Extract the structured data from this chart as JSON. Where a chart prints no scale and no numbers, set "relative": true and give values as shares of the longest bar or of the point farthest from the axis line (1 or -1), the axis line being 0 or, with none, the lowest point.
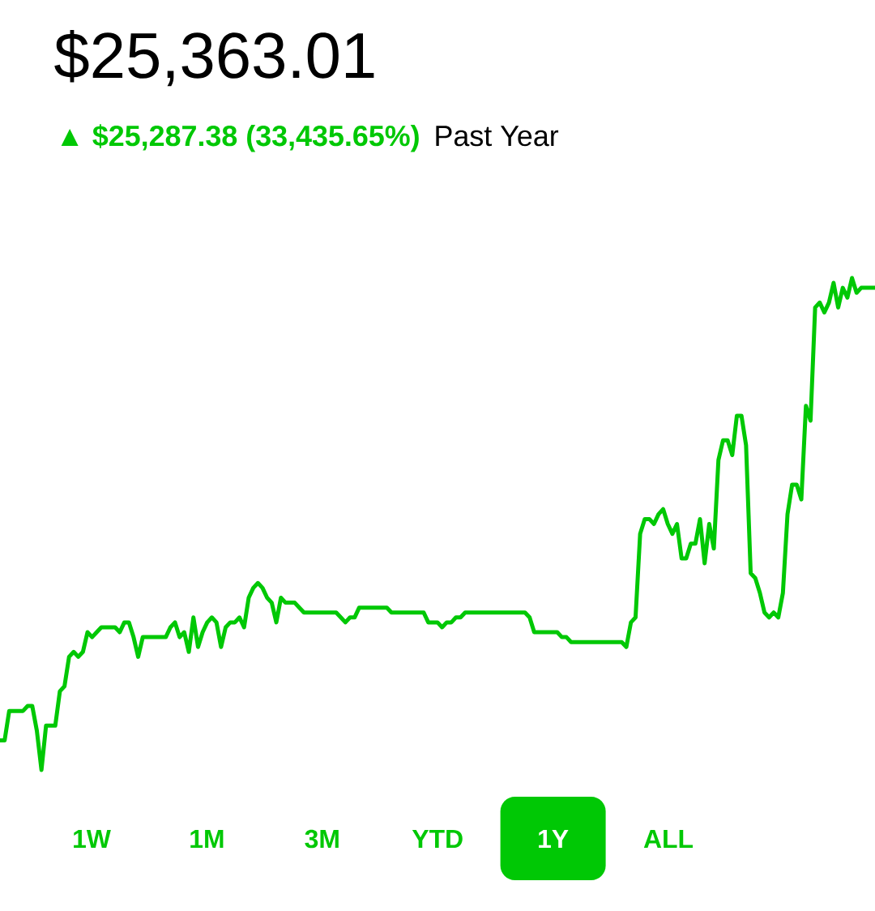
{
  "chart_data": {
    "type": "line",
    "title": "$25,363.01",
    "subtitle": "▲ $25,287.38 (33,435.65%)",
    "annotations": [
      "Past Year",
      "1W",
      "1M",
      "3M",
      "YTD",
      "1Y",
      "ALL"
    ],
    "relative": true,
    "categories": [
      null,
      null,
      null,
      null,
      null,
      null,
      null,
      null,
      null,
      null,
      null,
      null,
      null,
      null,
      null,
      null,
      null,
      null,
      null,
      null,
      null,
      null,
      null,
      null,
      null,
      null,
      null,
      null,
      null,
      null,
      null,
      null,
      null,
      null,
      null,
      null,
      null,
      null,
      null,
      null,
      null,
      null,
      null,
      null,
      null,
      null,
      null,
      null,
      null,
      null,
      null,
      null,
      null,
      null,
      null,
      null,
      null,
      null,
      null,
      null,
      null,
      null,
      null,
      null,
      null,
      null,
      null,
      null,
      null,
      null,
      null,
      null,
      null,
      null,
      null,
      null,
      null,
      null,
      null,
      null,
      null,
      null,
      null,
      null,
      null,
      null,
      null,
      null,
      null,
      null,
      null,
      null,
      null,
      null,
      null,
      null,
      null,
      null,
      null,
      null,
      null,
      null,
      null,
      null,
      null,
      null,
      null,
      null,
      null,
      null,
      null,
      null,
      null,
      null,
      null,
      null,
      null,
      null,
      null,
      null,
      null,
      null,
      null,
      null,
      null,
      null,
      null,
      null,
      null,
      null,
      null,
      null,
      null,
      null,
      null,
      null,
      null,
      null,
      null,
      null,
      null,
      null,
      null,
      null,
      null,
      null,
      null,
      null,
      null,
      null,
      null,
      null,
      null,
      null,
      null,
      null,
      null,
      null,
      null,
      null,
      null,
      null,
      null,
      null,
      null,
      null,
      null,
      null,
      null,
      null,
      null,
      null,
      null,
      null,
      null,
      null,
      null,
      null,
      null,
      null,
      null,
      null,
      null,
      null,
      null,
      null,
      null,
      null,
      null,
      null,
      null
    ],
    "series": [
      {
        "color": "#00c805",
        "values": [
          0.06,
          0.06,
          0.12,
          0.12,
          0.12,
          0.12,
          0.13,
          0.13,
          0.08,
          0,
          0.09,
          0.09,
          0.09,
          0.16,
          0.17,
          0.23,
          0.24,
          0.23,
          0.24,
          0.28,
          0.27,
          0.28,
          0.29,
          0.29,
          0.29,
          0.29,
          0.28,
          0.3,
          0.3,
          0.27,
          0.23,
          0.27,
          0.27,
          0.27,
          0.27,
          0.27,
          0.27,
          0.29,
          0.3,
          0.27,
          0.28,
          0.24,
          0.31,
          0.25,
          0.28,
          0.3,
          0.31,
          0.3,
          0.25,
          0.29,
          0.3,
          0.3,
          0.31,
          0.29,
          0.35,
          0.37,
          0.38,
          0.37,
          0.35,
          0.34,
          0.3,
          0.35,
          0.34,
          0.34,
          0.34,
          0.33,
          0.32,
          0.32,
          0.32,
          0.32,
          0.32,
          0.32,
          0.32,
          0.32,
          0.31,
          0.3,
          0.31,
          0.31,
          0.33,
          0.33,
          0.33,
          0.33,
          0.33,
          0.33,
          0.33,
          0.32,
          0.32,
          0.32,
          0.32,
          0.32,
          0.32,
          0.32,
          0.32,
          0.3,
          0.3,
          0.3,
          0.29,
          0.3,
          0.3,
          0.31,
          0.31,
          0.32,
          0.32,
          0.32,
          0.32,
          0.32,
          0.32,
          0.32,
          0.32,
          0.32,
          0.32,
          0.32,
          0.32,
          0.32,
          0.32,
          0.31,
          0.28,
          0.28,
          0.28,
          0.28,
          0.28,
          0.28,
          0.27,
          0.27,
          0.26,
          0.26,
          0.26,
          0.26,
          0.26,
          0.26,
          0.26,
          0.26,
          0.26,
          0.26,
          0.26,
          0.26,
          0.25,
          0.3,
          0.31,
          0.48,
          0.51,
          0.51,
          0.5,
          0.52,
          0.53,
          0.5,
          0.48,
          0.5,
          0.43,
          0.43,
          0.46,
          0.46,
          0.51,
          0.42,
          0.5,
          0.45,
          0.63,
          0.67,
          0.67,
          0.64,
          0.72,
          0.72,
          0.66,
          0.4,
          0.39,
          0.36,
          0.32,
          0.31,
          0.32,
          0.31,
          0.36,
          0.52,
          0.58,
          0.58,
          0.55,
          0.74,
          0.71,
          0.94,
          0.95,
          0.93,
          0.95,
          0.99,
          0.94,
          0.98,
          0.96,
          1,
          0.97,
          0.98,
          0.98,
          0.98,
          0.98
        ]
      }
    ]
  }
}
